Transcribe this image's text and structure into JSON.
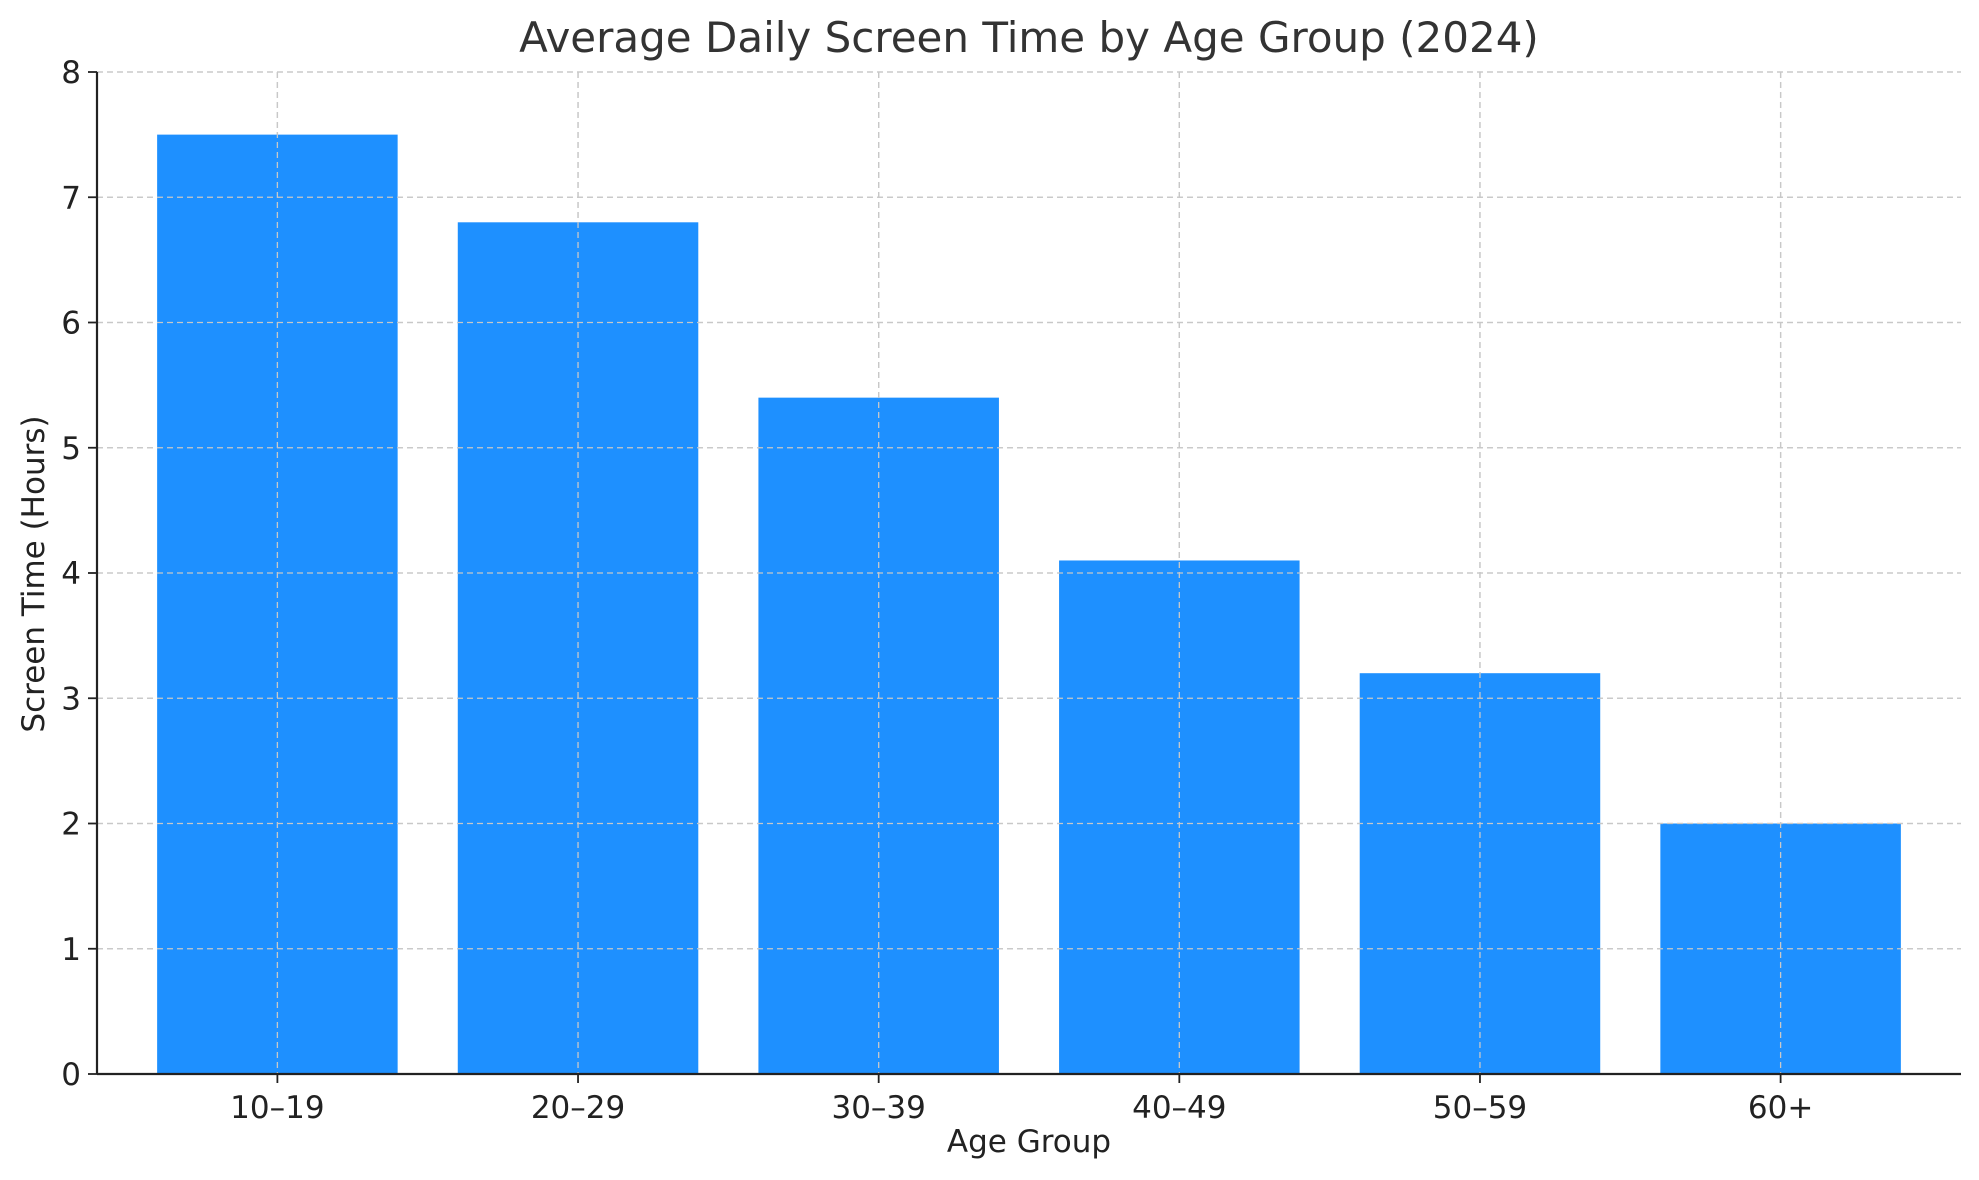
{
  "chart_data": {
    "type": "bar",
    "title": "Average Daily Screen Time by Age Group (2024)",
    "xlabel": "Age Group",
    "ylabel": "Screen Time (Hours)",
    "categories": [
      "10–19",
      "20–29",
      "30–39",
      "40–49",
      "50–59",
      "60+"
    ],
    "values": [
      7.5,
      6.8,
      5.4,
      4.1,
      3.2,
      2.0
    ],
    "ylim": [
      0,
      8
    ],
    "yticks": [
      "0",
      "1",
      "2",
      "3",
      "4",
      "5",
      "6",
      "7",
      "8"
    ],
    "grid": true,
    "legend": "none",
    "bar_color": "#1E90FF"
  }
}
